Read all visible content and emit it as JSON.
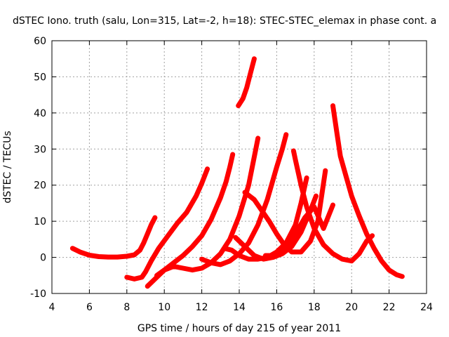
{
  "chart_data": {
    "type": "line",
    "title": "dSTEC Iono. truth (salu, Lon=315, Lat=-2, h=18): STEC-STEC_elemax in phase cont. a",
    "xlabel": "GPS time / hours of day 215 of year 2011",
    "ylabel": "dSTEC  / TECUs",
    "xlim": [
      4,
      24
    ],
    "ylim": [
      -10,
      60
    ],
    "xticks": [
      4,
      6,
      8,
      10,
      12,
      14,
      16,
      18,
      20,
      22,
      24
    ],
    "yticks": [
      -10,
      0,
      10,
      20,
      30,
      40,
      50,
      60
    ],
    "grid": true,
    "series_color": "#ff0000",
    "marker": "plus",
    "series": [
      {
        "x": [
          5.1,
          5.5,
          6.0,
          6.5,
          7.0,
          7.5,
          8.0,
          8.4,
          8.7,
          8.9,
          9.1,
          9.3,
          9.5
        ],
        "y": [
          2.5,
          1.5,
          0.6,
          0.2,
          0.1,
          0.1,
          0.3,
          0.7,
          2.0,
          4.0,
          6.5,
          9.0,
          11.0
        ]
      },
      {
        "x": [
          8.0,
          8.4,
          8.8,
          9.0,
          9.3,
          9.7,
          10.2,
          10.7,
          11.2,
          11.7,
          12.0,
          12.3
        ],
        "y": [
          -5.5,
          -6.0,
          -5.5,
          -4.0,
          -1.0,
          2.5,
          6.0,
          9.5,
          12.5,
          17.0,
          20.5,
          24.5
        ]
      },
      {
        "x": [
          9.1,
          9.5,
          10.0,
          10.5,
          11.0,
          11.5,
          12.0,
          12.5,
          13.0,
          13.3,
          13.5,
          13.65
        ],
        "y": [
          -8.0,
          -6.0,
          -3.5,
          -1.5,
          0.5,
          3.0,
          6.0,
          10.5,
          16.5,
          21.0,
          25.0,
          28.5
        ]
      },
      {
        "x": [
          9.6,
          10.0,
          10.5,
          11.0,
          11.5,
          12.0,
          12.5,
          13.0,
          13.5,
          14.0,
          14.5,
          15.0
        ],
        "y": [
          -5.0,
          -3.5,
          -2.5,
          -3.0,
          -3.5,
          -3.0,
          -1.5,
          1.0,
          5.0,
          11.5,
          20.0,
          33.0
        ]
      },
      {
        "x": [
          12.0,
          12.5,
          13.0,
          13.5,
          14.0,
          14.5,
          15.0,
          15.5,
          16.0,
          16.3,
          16.5
        ],
        "y": [
          -0.5,
          -1.5,
          -2.0,
          -1.0,
          1.0,
          4.0,
          9.0,
          16.0,
          25.0,
          30.0,
          34.0
        ]
      },
      {
        "x": [
          13.95,
          14.2,
          14.4,
          14.6,
          14.8
        ],
        "y": [
          42.0,
          44.0,
          47.0,
          51.0,
          55.0
        ]
      },
      {
        "x": [
          13.2,
          13.6,
          14.0,
          14.5,
          15.0,
          15.5,
          16.0,
          16.5,
          17.0,
          17.3,
          17.6
        ],
        "y": [
          2.5,
          2.0,
          0.5,
          -0.5,
          -0.5,
          0.0,
          1.5,
          4.0,
          9.0,
          15.0,
          22.0
        ]
      },
      {
        "x": [
          13.8,
          14.3,
          14.8,
          15.3,
          15.8,
          16.3,
          16.8,
          17.3,
          17.8,
          18.1
        ],
        "y": [
          5.5,
          3.0,
          0.5,
          -0.5,
          0.0,
          1.0,
          3.0,
          7.0,
          13.0,
          17.0
        ]
      },
      {
        "x": [
          14.3,
          14.8,
          15.2,
          15.6,
          16.0,
          16.4,
          16.8,
          17.3,
          17.8,
          18.2,
          18.6
        ],
        "y": [
          18.0,
          16.0,
          13.0,
          10.0,
          6.5,
          3.5,
          1.5,
          1.5,
          4.5,
          10.0,
          24.0
        ]
      },
      {
        "x": [
          15.4,
          15.8,
          16.2,
          16.6,
          17.0,
          17.5,
          18.0,
          18.5,
          19.0
        ],
        "y": [
          0.5,
          0.5,
          1.0,
          3.0,
          6.5,
          11.0,
          14.0,
          8.0,
          14.5
        ]
      },
      {
        "x": [
          16.9,
          17.0,
          17.3,
          17.6,
          18.0,
          18.5,
          19.0,
          19.5,
          20.0,
          20.4,
          20.8,
          21.1
        ],
        "y": [
          29.5,
          27.0,
          20.0,
          14.0,
          8.0,
          3.5,
          1.0,
          -0.5,
          -1.0,
          1.0,
          4.5,
          6.0
        ]
      },
      {
        "x": [
          19.0,
          19.2,
          19.4,
          19.7,
          20.0,
          20.4,
          20.8,
          21.2,
          21.6,
          22.0,
          22.4,
          22.7
        ],
        "y": [
          42.0,
          35.0,
          28.0,
          22.5,
          17.0,
          11.5,
          6.5,
          2.5,
          -1.0,
          -3.5,
          -4.8,
          -5.3
        ]
      }
    ]
  }
}
